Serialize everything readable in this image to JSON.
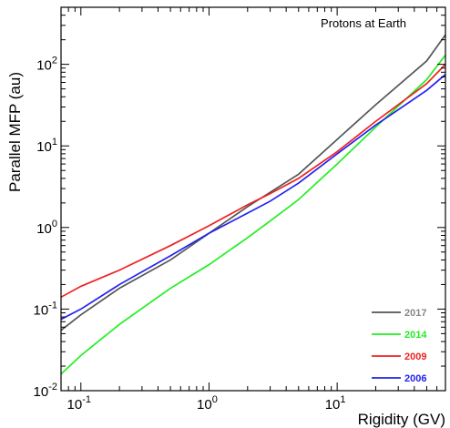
{
  "chart_data": {
    "type": "line",
    "annotation": "Protons at Earth",
    "xlabel": "Rigidity (GV)",
    "ylabel": "Parallel MFP (au)",
    "x_scale": "log",
    "y_scale": "log",
    "xlim": [
      0.07,
      70
    ],
    "ylim": [
      0.01,
      500
    ],
    "x_ticks": [
      {
        "value": 0.1,
        "label": "10",
        "exp": "-1"
      },
      {
        "value": 1,
        "label": "10",
        "exp": "0"
      },
      {
        "value": 10,
        "label": "10",
        "exp": "1"
      }
    ],
    "y_ticks": [
      {
        "value": 0.01,
        "label": "10",
        "exp": "-2"
      },
      {
        "value": 0.1,
        "label": "10",
        "exp": "-1"
      },
      {
        "value": 1,
        "label": "10",
        "exp": "0"
      },
      {
        "value": 10,
        "label": "10",
        "exp": "1"
      },
      {
        "value": 100,
        "label": "10",
        "exp": "2"
      }
    ],
    "grid": false,
    "legend_position": "bottom-right",
    "series": [
      {
        "name": "2017",
        "color": "#555555",
        "label_color": "#888888",
        "x": [
          0.07,
          0.1,
          0.2,
          0.5,
          1,
          2,
          3,
          5,
          10,
          20,
          50,
          70
        ],
        "y": [
          0.055,
          0.085,
          0.18,
          0.4,
          0.85,
          1.8,
          2.7,
          4.5,
          12,
          32,
          110,
          230
        ]
      },
      {
        "name": "2014",
        "color": "#22ee22",
        "label_color": "#22ee22",
        "x": [
          0.07,
          0.1,
          0.2,
          0.5,
          1,
          2,
          3,
          5,
          10,
          20,
          50,
          70
        ],
        "y": [
          0.016,
          0.027,
          0.065,
          0.18,
          0.35,
          0.75,
          1.2,
          2.2,
          6,
          17,
          65,
          130
        ]
      },
      {
        "name": "2009",
        "color": "#ee2222",
        "label_color": "#ee2222",
        "x": [
          0.07,
          0.1,
          0.2,
          0.5,
          1,
          2,
          3,
          5,
          10,
          20,
          50,
          70
        ],
        "y": [
          0.14,
          0.19,
          0.3,
          0.6,
          1.05,
          1.9,
          2.6,
          4,
          8.5,
          20,
          58,
          100
        ]
      },
      {
        "name": "2006",
        "color": "#2222ee",
        "label_color": "#2222ee",
        "x": [
          0.07,
          0.1,
          0.2,
          0.5,
          1,
          2,
          3,
          5,
          10,
          20,
          50,
          70
        ],
        "y": [
          0.075,
          0.1,
          0.2,
          0.45,
          0.85,
          1.5,
          2.1,
          3.5,
          8,
          18,
          48,
          75
        ]
      }
    ]
  }
}
